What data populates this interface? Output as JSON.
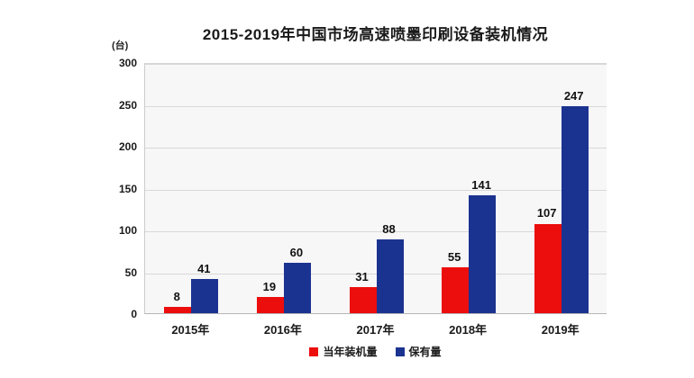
{
  "chart_data": {
    "type": "bar",
    "title": "2015-2019年中国市场高速喷墨印刷设备装机情况",
    "unit_label": "(台)",
    "categories": [
      "2015年",
      "2016年",
      "2017年",
      "2018年",
      "2019年"
    ],
    "series": [
      {
        "name": "当年装机量",
        "color": "#ec0d0d",
        "values": [
          8,
          19,
          31,
          55,
          107
        ]
      },
      {
        "name": "保有量",
        "color": "#1b3390",
        "values": [
          41,
          60,
          88,
          141,
          247
        ]
      }
    ],
    "ylim": [
      0,
      300
    ],
    "ytick_step": 50,
    "yticks": [
      0,
      50,
      100,
      150,
      200,
      250,
      300
    ],
    "grid": true,
    "legend_position": "bottom",
    "plot_background": "#f7f7f8",
    "gridline_color": "#d8d8d8"
  }
}
